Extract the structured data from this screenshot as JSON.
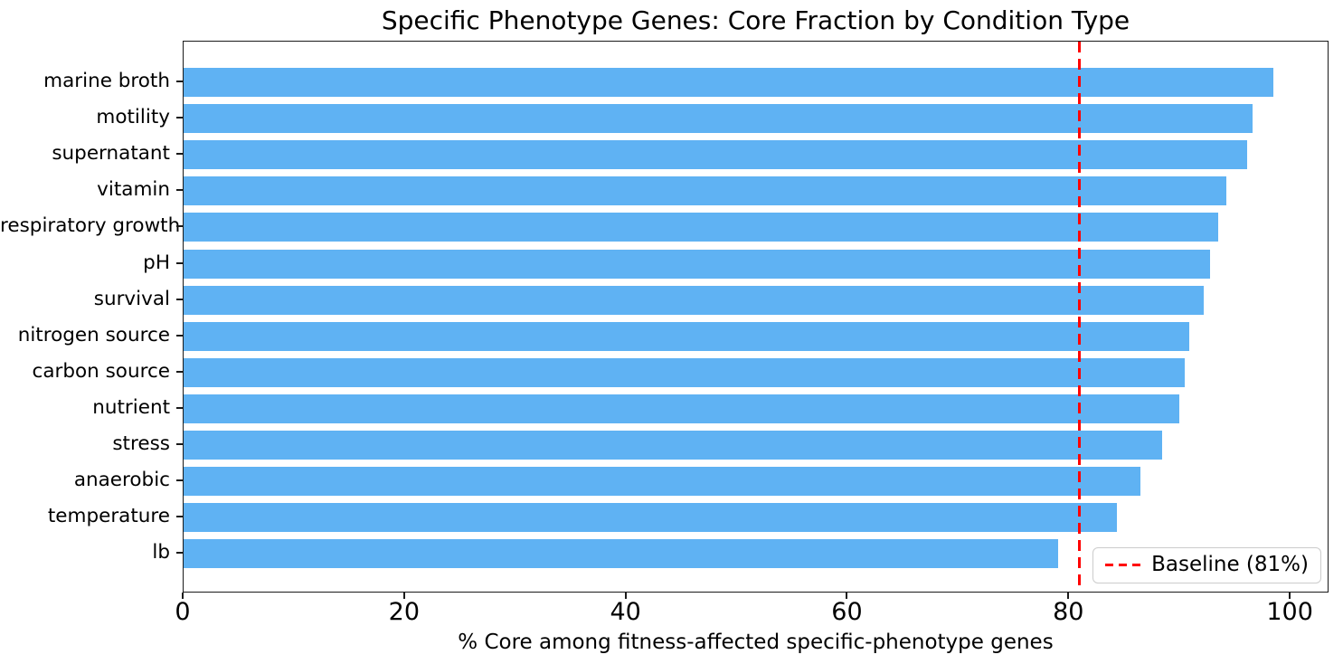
{
  "chart_data": {
    "type": "bar",
    "orientation": "horizontal",
    "title": "Specific Phenotype Genes: Core Fraction by Condition Type",
    "xlabel": "% Core among fitness-affected specific-phenotype genes",
    "ylabel": "",
    "categories": [
      "marine broth",
      "motility",
      "supernatant",
      "vitamin",
      "respiratory growth",
      "pH",
      "survival",
      "nitrogen source",
      "carbon source",
      "nutrient",
      "stress",
      "anaerobic",
      "temperature",
      "lb"
    ],
    "values": [
      98.6,
      96.7,
      96.2,
      94.3,
      93.6,
      92.9,
      92.3,
      91.0,
      90.6,
      90.1,
      88.5,
      86.6,
      84.4,
      79.1
    ],
    "xlim": [
      0,
      103.5
    ],
    "xticks": [
      0,
      20,
      40,
      60,
      80,
      100
    ],
    "grid": false,
    "bar_color": "#5FB2F3",
    "baseline": {
      "value": 81,
      "label": "Baseline (81%)",
      "color": "#FF0000",
      "linestyle": "dashed"
    },
    "legend_position": "lower right"
  }
}
